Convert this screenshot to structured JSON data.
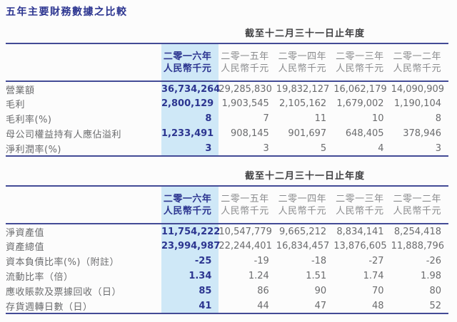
{
  "title": "五年主要財務數據之比較",
  "colors": {
    "accent_navy": "#2c3590",
    "rule_navy": "#434b96",
    "highlight_bg": "#cfe8f7",
    "body_gray": "#6b6c6e",
    "header_gray": "#8a8b8d",
    "caption_dark": "#3f3f41",
    "page_bg": "#fcfcfc"
  },
  "tables": [
    {
      "caption": "截至十二月三十一日止年度",
      "columns": [
        {
          "year": "二零一六年",
          "unit": "人民幣千元",
          "highlight": true
        },
        {
          "year": "二零一五年",
          "unit": "人民幣千元",
          "highlight": false
        },
        {
          "year": "二零一四年",
          "unit": "人民幣千元",
          "highlight": false
        },
        {
          "year": "二零一三年",
          "unit": "人民幣千元",
          "highlight": false
        },
        {
          "year": "二零一二年",
          "unit": "人民幣千元",
          "highlight": false
        }
      ],
      "rows": [
        {
          "label": "營業額",
          "values": [
            "36,734,264",
            "29,285,830",
            "19,832,127",
            "16,062,179",
            "14,090,909"
          ]
        },
        {
          "label": "毛利",
          "values": [
            "2,800,129",
            "1,903,545",
            "2,105,162",
            "1,679,002",
            "1,190,104"
          ]
        },
        {
          "label": "毛利率(%)",
          "values": [
            "8",
            "7",
            "11",
            "10",
            "8"
          ]
        },
        {
          "label": "母公司權益持有人應佔溢利",
          "values": [
            "1,233,491",
            "908,145",
            "901,697",
            "648,405",
            "378,946"
          ]
        },
        {
          "label": "淨利潤率(%)",
          "values": [
            "3",
            "3",
            "5",
            "4",
            "3"
          ]
        }
      ]
    },
    {
      "caption": "截至十二月三十一日止年度",
      "columns": [
        {
          "year": "二零一六年",
          "unit": "人民幣千元",
          "highlight": true
        },
        {
          "year": "二零一五年",
          "unit": "人民幣千元",
          "highlight": false
        },
        {
          "year": "二零一四年",
          "unit": "人民幣千元",
          "highlight": false
        },
        {
          "year": "二零一三年",
          "unit": "人民幣千元",
          "highlight": false
        },
        {
          "year": "二零一二年",
          "unit": "人民幣千元",
          "highlight": false
        }
      ],
      "rows": [
        {
          "label": "淨資產值",
          "values": [
            "11,754,222",
            "10,547,779",
            "9,665,212",
            "8,834,141",
            "8,254,418"
          ]
        },
        {
          "label": "資產總值",
          "values": [
            "23,994,987",
            "22,244,401",
            "16,834,457",
            "13,876,605",
            "11,888,796"
          ]
        },
        {
          "label": "資本負債比率(%)（附註）",
          "values": [
            "-25",
            "-19",
            "-18",
            "-27",
            "-26"
          ]
        },
        {
          "label": "流動比率（倍）",
          "values": [
            "1.34",
            "1.24",
            "1.51",
            "1.74",
            "1.98"
          ]
        },
        {
          "label": "應收賬款及票據回收（日）",
          "values": [
            "85",
            "86",
            "90",
            "70",
            "80"
          ]
        },
        {
          "label": "存貨週轉日數（日）",
          "values": [
            "41",
            "44",
            "47",
            "48",
            "52"
          ]
        }
      ]
    }
  ]
}
